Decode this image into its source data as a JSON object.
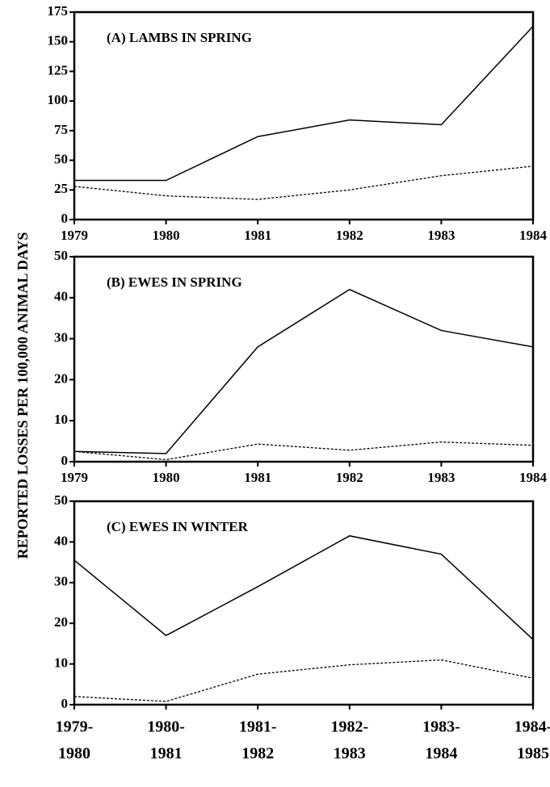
{
  "ylabel": "REPORTED LOSSES PER 100,000 ANIMAL DAYS",
  "chart_data": [
    {
      "type": "line",
      "title": "(A) LAMBS IN SPRING",
      "x": [
        1979,
        1980,
        1981,
        1982,
        1983,
        1984
      ],
      "xlim": [
        1979,
        1984
      ],
      "xticks": [
        1979,
        1980,
        1981,
        1982,
        1983,
        1984
      ],
      "ylim": [
        0,
        175
      ],
      "yticks": [
        0,
        25,
        50,
        75,
        100,
        125,
        150,
        175
      ],
      "series": [
        {
          "color": "#000000",
          "style": "solid",
          "values": [
            33,
            33,
            70,
            84,
            80,
            163
          ]
        },
        {
          "color": "#000000",
          "style": "dashed",
          "values": [
            28,
            20,
            17,
            25,
            37,
            45
          ]
        }
      ]
    },
    {
      "type": "line",
      "title": "(B) EWES IN SPRING",
      "x": [
        1979,
        1980,
        1981,
        1982,
        1983,
        1984
      ],
      "xlim": [
        1979,
        1984
      ],
      "xticks": [
        1979,
        1980,
        1981,
        1982,
        1983,
        1984
      ],
      "ylim": [
        0,
        50
      ],
      "yticks": [
        0,
        10,
        20,
        30,
        40,
        50
      ],
      "series": [
        {
          "color": "#000000",
          "style": "solid",
          "values": [
            2.5,
            2,
            28,
            42,
            32,
            28
          ]
        },
        {
          "color": "#000000",
          "style": "dashed",
          "values": [
            2.5,
            0.5,
            4.3,
            2.8,
            4.8,
            4
          ]
        }
      ]
    },
    {
      "type": "line",
      "title": "(C) EWES IN WINTER",
      "categories": [
        [
          "1979-",
          "1980"
        ],
        [
          "1980-",
          "1981"
        ],
        [
          "1981-",
          "1982"
        ],
        [
          "1982-",
          "1983"
        ],
        [
          "1983-",
          "1984"
        ],
        [
          "1984-",
          "1985"
        ]
      ],
      "ylim": [
        0,
        50
      ],
      "yticks": [
        0,
        10,
        20,
        30,
        40,
        50
      ],
      "series": [
        {
          "color": "#000000",
          "style": "solid",
          "values": [
            35.5,
            17,
            29,
            41.5,
            37,
            16
          ]
        },
        {
          "color": "#000000",
          "style": "dashed",
          "values": [
            2,
            0.8,
            7.5,
            9.8,
            11,
            6.5
          ]
        }
      ]
    }
  ]
}
